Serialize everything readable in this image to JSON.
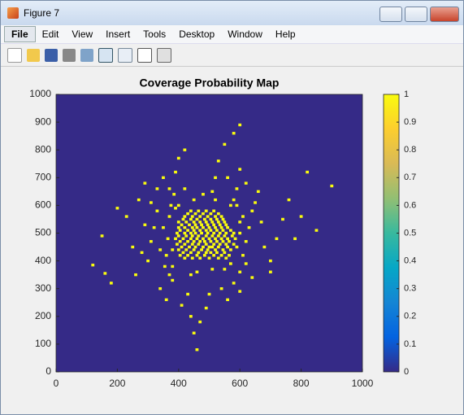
{
  "window": {
    "title": "Figure 7",
    "menu": [
      "File",
      "Edit",
      "View",
      "Insert",
      "Tools",
      "Desktop",
      "Window",
      "Help"
    ]
  },
  "chart_data": {
    "type": "heatmap",
    "title": "Coverage Probability Map",
    "xlim": [
      0,
      1000
    ],
    "ylim": [
      0,
      1000
    ],
    "xticks": [
      0,
      200,
      400,
      600,
      800,
      1000
    ],
    "yticks": [
      0,
      100,
      200,
      300,
      400,
      500,
      600,
      700,
      800,
      900,
      1000
    ],
    "clim": [
      0,
      1
    ],
    "cticks": [
      0,
      0.1,
      0.2,
      0.3,
      0.4,
      0.5,
      0.6,
      0.7,
      0.8,
      0.9,
      1
    ],
    "colormap": [
      "#352a87",
      "#0363e1",
      "#1485d4",
      "#06a7c6",
      "#38b99e",
      "#92bf73",
      "#d9ba56",
      "#fcce2e",
      "#f9fb0e"
    ],
    "background_value": 0,
    "point_value": 1,
    "points": [
      [
        420,
        410
      ],
      [
        445,
        410
      ],
      [
        470,
        410
      ],
      [
        500,
        410
      ],
      [
        530,
        410
      ],
      [
        555,
        410
      ],
      [
        405,
        420
      ],
      [
        430,
        420
      ],
      [
        460,
        420
      ],
      [
        485,
        420
      ],
      [
        515,
        420
      ],
      [
        540,
        420
      ],
      [
        565,
        420
      ],
      [
        415,
        430
      ],
      [
        440,
        430
      ],
      [
        465,
        430
      ],
      [
        490,
        430
      ],
      [
        505,
        430
      ],
      [
        525,
        430
      ],
      [
        550,
        430
      ],
      [
        400,
        440
      ],
      [
        425,
        440
      ],
      [
        450,
        440
      ],
      [
        475,
        440
      ],
      [
        495,
        440
      ],
      [
        520,
        440
      ],
      [
        545,
        440
      ],
      [
        570,
        440
      ],
      [
        410,
        450
      ],
      [
        435,
        450
      ],
      [
        455,
        450
      ],
      [
        480,
        450
      ],
      [
        500,
        450
      ],
      [
        510,
        450
      ],
      [
        530,
        450
      ],
      [
        560,
        450
      ],
      [
        395,
        460
      ],
      [
        420,
        460
      ],
      [
        445,
        460
      ],
      [
        465,
        460
      ],
      [
        490,
        460
      ],
      [
        515,
        460
      ],
      [
        535,
        460
      ],
      [
        555,
        460
      ],
      [
        580,
        460
      ],
      [
        405,
        470
      ],
      [
        430,
        470
      ],
      [
        450,
        470
      ],
      [
        470,
        470
      ],
      [
        485,
        470
      ],
      [
        505,
        470
      ],
      [
        525,
        470
      ],
      [
        545,
        470
      ],
      [
        565,
        470
      ],
      [
        390,
        480
      ],
      [
        415,
        480
      ],
      [
        440,
        480
      ],
      [
        460,
        480
      ],
      [
        480,
        480
      ],
      [
        500,
        480
      ],
      [
        520,
        480
      ],
      [
        540,
        480
      ],
      [
        560,
        480
      ],
      [
        585,
        480
      ],
      [
        400,
        490
      ],
      [
        425,
        490
      ],
      [
        445,
        490
      ],
      [
        465,
        490
      ],
      [
        490,
        490
      ],
      [
        510,
        490
      ],
      [
        530,
        490
      ],
      [
        550,
        490
      ],
      [
        575,
        490
      ],
      [
        395,
        500
      ],
      [
        420,
        500
      ],
      [
        440,
        500
      ],
      [
        455,
        500
      ],
      [
        475,
        500
      ],
      [
        495,
        500
      ],
      [
        515,
        500
      ],
      [
        535,
        500
      ],
      [
        555,
        500
      ],
      [
        580,
        500
      ],
      [
        405,
        510
      ],
      [
        430,
        510
      ],
      [
        450,
        510
      ],
      [
        470,
        510
      ],
      [
        490,
        510
      ],
      [
        505,
        510
      ],
      [
        525,
        510
      ],
      [
        545,
        510
      ],
      [
        570,
        510
      ],
      [
        400,
        520
      ],
      [
        420,
        520
      ],
      [
        445,
        520
      ],
      [
        460,
        520
      ],
      [
        480,
        520
      ],
      [
        500,
        520
      ],
      [
        520,
        520
      ],
      [
        540,
        520
      ],
      [
        560,
        520
      ],
      [
        410,
        530
      ],
      [
        435,
        530
      ],
      [
        455,
        530
      ],
      [
        475,
        530
      ],
      [
        495,
        530
      ],
      [
        515,
        530
      ],
      [
        535,
        530
      ],
      [
        555,
        530
      ],
      [
        400,
        540
      ],
      [
        425,
        540
      ],
      [
        450,
        540
      ],
      [
        470,
        540
      ],
      [
        490,
        540
      ],
      [
        510,
        540
      ],
      [
        530,
        540
      ],
      [
        550,
        540
      ],
      [
        415,
        550
      ],
      [
        440,
        550
      ],
      [
        460,
        550
      ],
      [
        485,
        550
      ],
      [
        505,
        550
      ],
      [
        525,
        550
      ],
      [
        545,
        550
      ],
      [
        420,
        560
      ],
      [
        445,
        560
      ],
      [
        470,
        560
      ],
      [
        495,
        560
      ],
      [
        520,
        560
      ],
      [
        540,
        560
      ],
      [
        430,
        570
      ],
      [
        455,
        570
      ],
      [
        480,
        570
      ],
      [
        505,
        570
      ],
      [
        530,
        570
      ],
      [
        440,
        580
      ],
      [
        465,
        580
      ],
      [
        490,
        580
      ],
      [
        515,
        580
      ],
      [
        150,
        490
      ],
      [
        120,
        385
      ],
      [
        160,
        355
      ],
      [
        180,
        320
      ],
      [
        200,
        590
      ],
      [
        230,
        560
      ],
      [
        250,
        450
      ],
      [
        270,
        620
      ],
      [
        300,
        400
      ],
      [
        320,
        520
      ],
      [
        340,
        300
      ],
      [
        330,
        660
      ],
      [
        350,
        700
      ],
      [
        360,
        260
      ],
      [
        370,
        560
      ],
      [
        380,
        330
      ],
      [
        385,
        640
      ],
      [
        260,
        350
      ],
      [
        290,
        680
      ],
      [
        310,
        610
      ],
      [
        340,
        440
      ],
      [
        355,
        380
      ],
      [
        365,
        480
      ],
      [
        375,
        600
      ],
      [
        390,
        720
      ],
      [
        400,
        770
      ],
      [
        420,
        800
      ],
      [
        410,
        240
      ],
      [
        430,
        280
      ],
      [
        440,
        200
      ],
      [
        450,
        140
      ],
      [
        460,
        80
      ],
      [
        470,
        180
      ],
      [
        490,
        230
      ],
      [
        500,
        280
      ],
      [
        510,
        650
      ],
      [
        520,
        700
      ],
      [
        530,
        760
      ],
      [
        550,
        820
      ],
      [
        580,
        860
      ],
      [
        600,
        890
      ],
      [
        540,
        300
      ],
      [
        560,
        260
      ],
      [
        580,
        320
      ],
      [
        600,
        360
      ],
      [
        610,
        420
      ],
      [
        620,
        470
      ],
      [
        630,
        520
      ],
      [
        640,
        580
      ],
      [
        650,
        610
      ],
      [
        660,
        650
      ],
      [
        670,
        540
      ],
      [
        680,
        450
      ],
      [
        700,
        400
      ],
      [
        720,
        480
      ],
      [
        740,
        550
      ],
      [
        760,
        620
      ],
      [
        780,
        480
      ],
      [
        800,
        560
      ],
      [
        820,
        720
      ],
      [
        850,
        510
      ],
      [
        900,
        670
      ],
      [
        620,
        680
      ],
      [
        600,
        730
      ],
      [
        590,
        600
      ],
      [
        600,
        290
      ],
      [
        640,
        340
      ],
      [
        700,
        360
      ],
      [
        570,
        390
      ],
      [
        590,
        450
      ],
      [
        600,
        540
      ],
      [
        580,
        620
      ],
      [
        590,
        660
      ],
      [
        610,
        560
      ],
      [
        620,
        390
      ],
      [
        350,
        520
      ],
      [
        360,
        420
      ],
      [
        370,
        350
      ],
      [
        380,
        440
      ],
      [
        390,
        590
      ],
      [
        330,
        580
      ],
      [
        310,
        470
      ],
      [
        290,
        530
      ],
      [
        280,
        430
      ],
      [
        370,
        660
      ],
      [
        560,
        700
      ],
      [
        520,
        620
      ],
      [
        480,
        640
      ],
      [
        450,
        620
      ],
      [
        420,
        660
      ],
      [
        460,
        360
      ],
      [
        510,
        370
      ],
      [
        440,
        350
      ],
      [
        550,
        370
      ],
      [
        380,
        380
      ],
      [
        400,
        600
      ],
      [
        600,
        500
      ],
      [
        570,
        600
      ]
    ]
  }
}
